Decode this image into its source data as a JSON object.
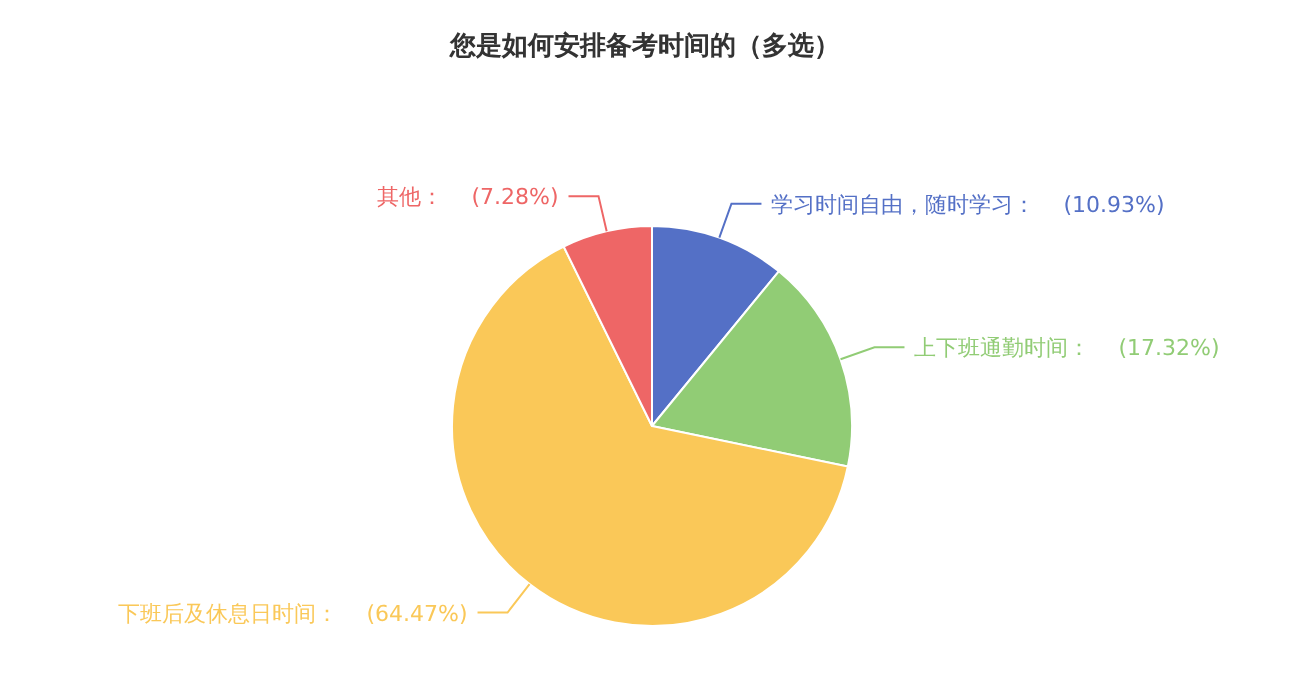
{
  "chart_data": {
    "type": "pie",
    "title": "您是如何安排备考时间的（多选）",
    "categories": [
      "学习时间自由，随时学习",
      "上下班通勤时间",
      "下班后及休息日时间",
      "其他"
    ],
    "values": [
      10.93,
      17.32,
      64.47,
      7.28
    ],
    "colors": [
      "#5470c6",
      "#91cc75",
      "#fac858",
      "#ee6666"
    ],
    "value_labels": [
      "(10.93%)",
      "(17.32%)",
      "(64.47%)",
      "(7.28%)"
    ]
  }
}
